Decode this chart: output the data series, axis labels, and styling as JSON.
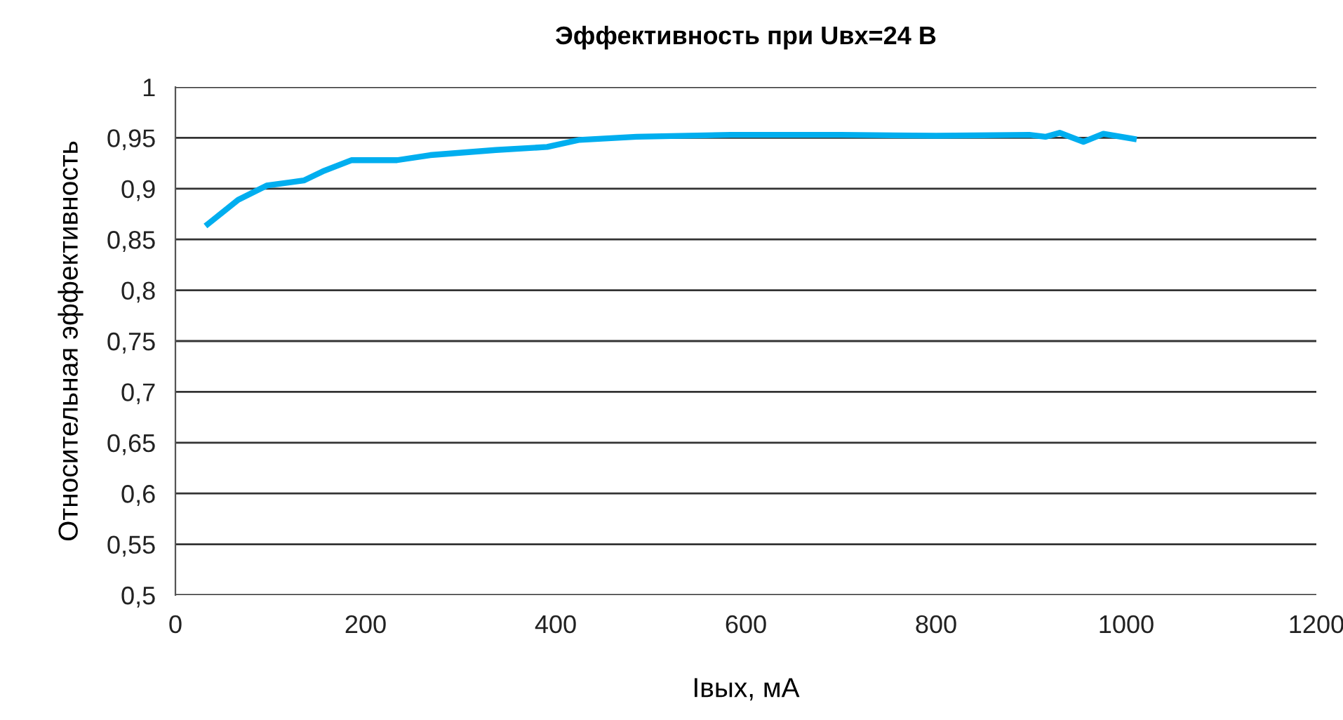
{
  "chart_data": {
    "type": "line",
    "title": "Эффективность при Uвх=24 В",
    "xlabel": "Iвых, мА",
    "ylabel": "Относительная эффективность",
    "x": [
      34,
      66,
      96,
      135,
      155,
      185,
      233,
      268,
      337,
      391,
      425,
      485,
      584,
      700,
      800,
      898,
      915,
      930,
      955,
      976,
      1008
    ],
    "series": [
      {
        "color": "#00aeef",
        "values": [
          0.865,
          0.889,
          0.903,
          0.908,
          0.917,
          0.928,
          0.928,
          0.933,
          0.938,
          0.941,
          0.948,
          0.951,
          0.953,
          0.953,
          0.952,
          0.953,
          0.951,
          0.955,
          0.946,
          0.954,
          0.949
        ]
      }
    ],
    "xlim": [
      0,
      1200
    ],
    "xticks": [
      0,
      200,
      400,
      600,
      800,
      1000,
      1200
    ],
    "ylim": [
      0.5,
      1
    ],
    "yticks": [
      {
        "value": 0.5,
        "label": "0,5"
      },
      {
        "value": 0.55,
        "label": "0,55"
      },
      {
        "value": 0.6,
        "label": "0,6"
      },
      {
        "value": 0.65,
        "label": "0,65"
      },
      {
        "value": 0.7,
        "label": "0,7"
      },
      {
        "value": 0.75,
        "label": "0,75"
      },
      {
        "value": 0.8,
        "label": "0,8"
      },
      {
        "value": 0.85,
        "label": "0,85"
      },
      {
        "value": 0.9,
        "label": "0,9"
      },
      {
        "value": 0.95,
        "label": "0,95"
      },
      {
        "value": 1,
        "label": "1"
      }
    ],
    "grid": "y",
    "legend": false,
    "marker": "none",
    "line_style": "solid"
  }
}
